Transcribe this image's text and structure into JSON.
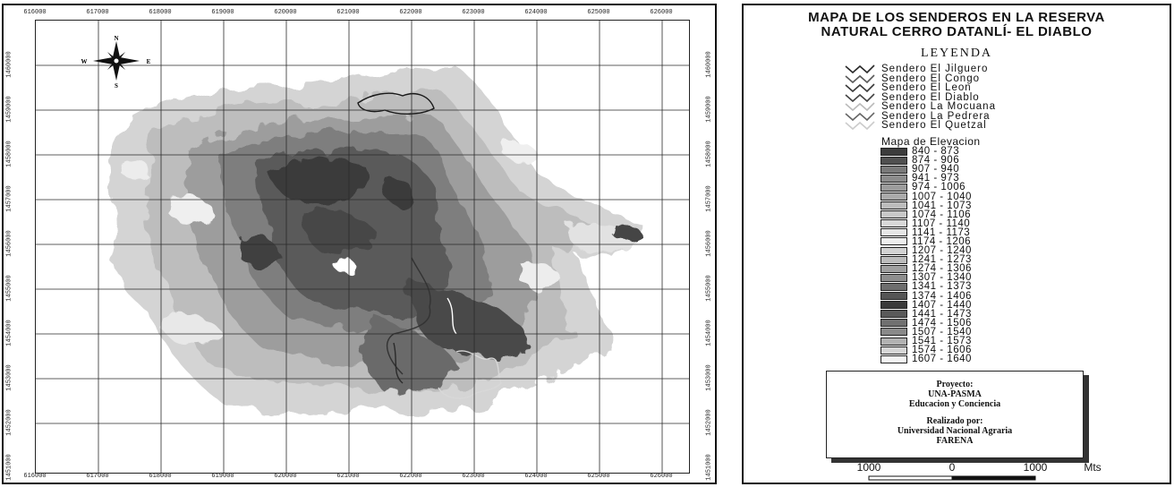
{
  "map": {
    "x_ticks": [
      "616000",
      "617000",
      "618000",
      "619000",
      "620000",
      "621000",
      "622000",
      "623000",
      "624000",
      "625000",
      "626000"
    ],
    "y_ticks": [
      "1460000",
      "1459000",
      "1458000",
      "1457000",
      "1456000",
      "1455000",
      "1454000",
      "1453000",
      "1452000",
      "1451000"
    ],
    "north_label": "N",
    "south_label": "S",
    "east_label": "E",
    "west_label": "W",
    "compass_icon": "compass-rose-icon"
  },
  "legend": {
    "title_line1": "MAPA DE LOS SENDEROS EN LA RESERVA",
    "title_line2": "NATURAL CERRO DATANLÍ- EL DIABLO",
    "heading": "LEYENDA",
    "trails": [
      {
        "label": "Sendero El Jilguero",
        "color": "#2a2a2a"
      },
      {
        "label": "Sendero El Congo",
        "color": "#5a5a5a"
      },
      {
        "label": "Sendero El Leon",
        "color": "#3a3a3a"
      },
      {
        "label": "Sendero El Diablo",
        "color": "#444444"
      },
      {
        "label": "Sendero La Mocuana",
        "color": "#bbbbbb"
      },
      {
        "label": "Sendero La Pedrera",
        "color": "#666666"
      },
      {
        "label": "Sendero El Quetzal",
        "color": "#cccccc"
      }
    ],
    "elevation_title": "Mapa de Elevacion",
    "elevation_classes": [
      {
        "label": "840 - 873",
        "color": "#3c3c3c"
      },
      {
        "label": "874 - 906",
        "color": "#505050"
      },
      {
        "label": "907 - 940",
        "color": "#7a7a7a"
      },
      {
        "label": "941 - 973",
        "color": "#8c8c8c"
      },
      {
        "label": "974 - 1006",
        "color": "#9c9c9c"
      },
      {
        "label": "1007 - 1040",
        "color": "#aaaaaa"
      },
      {
        "label": "1041 - 1073",
        "color": "#bcbcbc"
      },
      {
        "label": "1074 - 1106",
        "color": "#c8c8c8"
      },
      {
        "label": "1107 - 1140",
        "color": "#d8d8d8"
      },
      {
        "label": "1141 - 1173",
        "color": "#e6e6e6"
      },
      {
        "label": "1174 - 1206",
        "color": "#eeeeee"
      },
      {
        "label": "1207 - 1240",
        "color": "#d2d2d2"
      },
      {
        "label": "1241 - 1273",
        "color": "#bcbcbc"
      },
      {
        "label": "1274 - 1306",
        "color": "#a0a0a0"
      },
      {
        "label": "1307 - 1340",
        "color": "#8e8e8e"
      },
      {
        "label": "1341 - 1373",
        "color": "#6e6e6e"
      },
      {
        "label": "1374 - 1406",
        "color": "#555555"
      },
      {
        "label": "1407 - 1440",
        "color": "#3a3a3a"
      },
      {
        "label": "1441 - 1473",
        "color": "#5a5a5a"
      },
      {
        "label": "1474 - 1506",
        "color": "#707070"
      },
      {
        "label": "1507 - 1540",
        "color": "#8a8a8a"
      },
      {
        "label": "1541 - 1573",
        "color": "#b2b2b2"
      },
      {
        "label": "1574 - 1606",
        "color": "#d6d6d6"
      },
      {
        "label": "1607 - 1640",
        "color": "#f4f4f4"
      }
    ],
    "project_label": "Proyecto:",
    "project_name": "UNA-PASMA",
    "project_subtitle": "Educacion y Conciencia",
    "made_by_label": "Realizado por:",
    "made_by_org": "Universidad Nacional Agraria",
    "made_by_dept": "FARENA",
    "scale_left": "1000",
    "scale_mid": "0",
    "scale_right": "1000",
    "scale_unit": "Mts"
  }
}
